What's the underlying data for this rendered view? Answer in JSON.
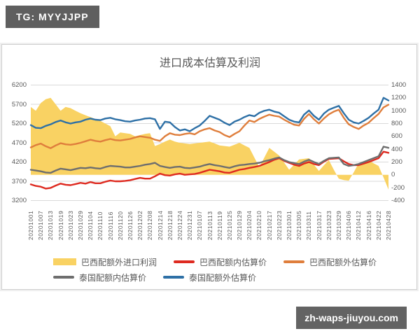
{
  "badge": {
    "text": "TG: MYYJJPP"
  },
  "watermark": {
    "text": "zh-waps-jiuyou.com"
  },
  "chart_data": {
    "type": "line",
    "subtype": "multi-line with area series on secondary axis",
    "title": "进口成本估算及利润",
    "grid": "horizontal gridlines on primary (left) axis, color #d9d9d9",
    "legend_position": "bottom",
    "left_axis": {
      "min": 3200,
      "max": 6200,
      "step": 500,
      "ticks": [
        "6200",
        "5700",
        "5200",
        "4700",
        "4200",
        "3700",
        "3200"
      ]
    },
    "right_axis": {
      "min": -400,
      "max": 1400,
      "step": 200,
      "ticks": [
        "1400",
        "1200",
        "1000",
        "800",
        "600",
        "400",
        "200",
        "0",
        "-200",
        "-400"
      ]
    },
    "x_tick_labels": [
      "20201001",
      "20201007",
      "20201013",
      "20201019",
      "20201023",
      "20201029",
      "20201104",
      "20201110",
      "20201116",
      "20201120",
      "20201126",
      "20201202",
      "20201208",
      "20201214",
      "20201218",
      "20201224",
      "20201231",
      "20210107",
      "20210113",
      "20210119",
      "20210125",
      "20210129",
      "20210204",
      "20210210",
      "20210217",
      "20210223",
      "20210301",
      "20210305",
      "20210311",
      "20210317",
      "20210323",
      "20210329",
      "20210406",
      "20210412",
      "20210416",
      "20210422",
      "20210428"
    ],
    "points_per_tick_interval": 2,
    "series": [
      {
        "name": "巴西配额外进口利润",
        "type": "area",
        "axis": "right",
        "color": "#F9D263",
        "values": [
          1060,
          1000,
          1120,
          1180,
          1200,
          1100,
          1000,
          1060,
          1040,
          1000,
          960,
          930,
          900,
          870,
          840,
          800,
          760,
          600,
          660,
          650,
          640,
          600,
          620,
          640,
          650,
          450,
          480,
          520,
          550,
          520,
          500,
          490,
          480,
          490,
          500,
          510,
          520,
          490,
          460,
          450,
          440,
          470,
          500,
          460,
          420,
          270,
          120,
          270,
          420,
          360,
          300,
          190,
          80,
          160,
          240,
          250,
          260,
          160,
          60,
          150,
          230,
          80,
          -60,
          -80,
          -90,
          40,
          180,
          210,
          230,
          180,
          140,
          -40,
          -230
        ]
      },
      {
        "name": "巴西配额内估算价",
        "type": "line",
        "axis": "left",
        "color": "#DE2A20",
        "values": [
          3620,
          3580,
          3560,
          3510,
          3530,
          3590,
          3640,
          3610,
          3600,
          3630,
          3660,
          3640,
          3680,
          3650,
          3650,
          3690,
          3720,
          3700,
          3700,
          3710,
          3730,
          3760,
          3790,
          3770,
          3770,
          3830,
          3900,
          3860,
          3850,
          3880,
          3900,
          3870,
          3880,
          3890,
          3920,
          3960,
          4000,
          3980,
          3960,
          3930,
          3920,
          3960,
          4000,
          4020,
          4050,
          4070,
          4100,
          4150,
          4200,
          4260,
          4300,
          4230,
          4180,
          4130,
          4100,
          4160,
          4200,
          4150,
          4120,
          4210,
          4280,
          4290,
          4300,
          4220,
          4150,
          4120,
          4120,
          4160,
          4200,
          4250,
          4300,
          4470,
          4440
        ]
      },
      {
        "name": "巴西配额外估算价",
        "type": "line",
        "axis": "left",
        "color": "#DF7E3C",
        "values": [
          4580,
          4640,
          4680,
          4610,
          4560,
          4630,
          4690,
          4660,
          4650,
          4670,
          4700,
          4740,
          4780,
          4750,
          4730,
          4770,
          4800,
          4770,
          4760,
          4780,
          4800,
          4840,
          4870,
          4850,
          4830,
          4780,
          4750,
          4870,
          4950,
          4910,
          4900,
          4930,
          4950,
          4920,
          5000,
          5050,
          5080,
          5020,
          4980,
          4900,
          4850,
          4930,
          5000,
          5150,
          5280,
          5240,
          5320,
          5380,
          5430,
          5400,
          5380,
          5300,
          5230,
          5170,
          5150,
          5320,
          5450,
          5310,
          5200,
          5330,
          5440,
          5510,
          5560,
          5350,
          5180,
          5110,
          5060,
          5150,
          5220,
          5340,
          5450,
          5620,
          5690
        ]
      },
      {
        "name": "泰国配额内估算价",
        "type": "line",
        "axis": "left",
        "color": "#6E6E6E",
        "values": [
          4000,
          3980,
          3960,
          3930,
          3920,
          3980,
          4030,
          4010,
          3990,
          4020,
          4050,
          4040,
          4060,
          4040,
          4030,
          4070,
          4100,
          4090,
          4080,
          4060,
          4060,
          4080,
          4100,
          4130,
          4150,
          4180,
          4100,
          4070,
          4050,
          4070,
          4080,
          4050,
          4040,
          4060,
          4080,
          4120,
          4150,
          4120,
          4100,
          4070,
          4050,
          4090,
          4120,
          4130,
          4150,
          4160,
          4180,
          4220,
          4250,
          4290,
          4320,
          4250,
          4200,
          4170,
          4150,
          4210,
          4260,
          4200,
          4150,
          4230,
          4300,
          4310,
          4320,
          4150,
          4100,
          4120,
          4150,
          4200,
          4250,
          4300,
          4350,
          4600,
          4570
        ]
      },
      {
        "name": "泰国配额外估算价",
        "type": "line",
        "axis": "left",
        "color": "#2E70A6",
        "values": [
          5160,
          5090,
          5080,
          5140,
          5180,
          5240,
          5280,
          5230,
          5200,
          5230,
          5250,
          5300,
          5330,
          5300,
          5290,
          5330,
          5350,
          5310,
          5290,
          5260,
          5250,
          5280,
          5300,
          5330,
          5340,
          5310,
          5060,
          5250,
          5230,
          5110,
          5020,
          5050,
          5000,
          5080,
          5150,
          5270,
          5400,
          5350,
          5300,
          5220,
          5160,
          5250,
          5300,
          5370,
          5420,
          5390,
          5480,
          5530,
          5560,
          5510,
          5480,
          5390,
          5300,
          5250,
          5230,
          5430,
          5540,
          5400,
          5300,
          5460,
          5560,
          5610,
          5660,
          5470,
          5300,
          5230,
          5200,
          5270,
          5350,
          5460,
          5560,
          5870,
          5800
        ]
      }
    ]
  }
}
